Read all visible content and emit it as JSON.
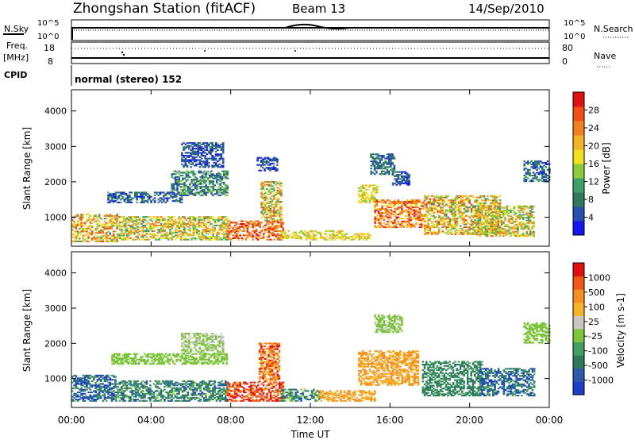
{
  "header": {
    "title": "Zhongshan Station (fitACF)",
    "beam": "Beam 13",
    "date": "14/Sep/2010"
  },
  "top_panels": {
    "nsky_label": "N.Sky",
    "nsky_ticks": [
      "10^5",
      "10^0"
    ],
    "nsearch_label": "N.Search",
    "nsearch_ticks": [
      "10^5",
      "10^0"
    ],
    "freq_label": "Freq.",
    "freq_unit": "[MHz]",
    "freq_ticks": [
      "18",
      "8"
    ],
    "nave_label": "Nave",
    "nave_ticks": [
      "80",
      "0"
    ],
    "cpid_label": "CPID",
    "cpid_text": "normal (stereo) 152"
  },
  "chart_data": [
    {
      "type": "heatmap",
      "name": "power",
      "ylabel": "Slant Range [km]",
      "xlabel": "Time UT",
      "x_range_hours": [
        0,
        24
      ],
      "ylim": [
        180,
        4600
      ],
      "yticks": [
        "1000",
        "2000",
        "3000",
        "4000"
      ],
      "xticks": [
        "00:00",
        "04:00",
        "08:00",
        "12:00",
        "16:00",
        "20:00",
        "00:00"
      ],
      "colorbar": {
        "label": "Power [dB]",
        "ticks": [
          "4",
          "8",
          "12",
          "16",
          "20",
          "24",
          "28"
        ],
        "colors": [
          "#1414f0",
          "#2a4eb0",
          "#2f7a5e",
          "#40a06a",
          "#8ccc3a",
          "#f0e020",
          "#f5b428",
          "#f08020",
          "#f05018",
          "#e01010"
        ]
      },
      "regions": [
        {
          "t": [
            0.0,
            2.3
          ],
          "r": [
            300,
            1100
          ],
          "level": [
            0.35,
            0.9
          ]
        },
        {
          "t": [
            1.8,
            5.5
          ],
          "r": [
            1400,
            1700
          ],
          "level": [
            0.05,
            0.35
          ]
        },
        {
          "t": [
            2.3,
            7.8
          ],
          "r": [
            350,
            1000
          ],
          "level": [
            0.3,
            0.8
          ]
        },
        {
          "t": [
            5.0,
            7.8
          ],
          "r": [
            1600,
            2300
          ],
          "level": [
            0.1,
            0.45
          ]
        },
        {
          "t": [
            5.5,
            7.6
          ],
          "r": [
            2400,
            3100
          ],
          "level": [
            0.05,
            0.3
          ]
        },
        {
          "t": [
            7.8,
            10.6
          ],
          "r": [
            350,
            900
          ],
          "level": [
            0.6,
            1.0
          ]
        },
        {
          "t": [
            9.5,
            10.5
          ],
          "r": [
            900,
            2000
          ],
          "level": [
            0.3,
            0.85
          ]
        },
        {
          "t": [
            9.3,
            10.3
          ],
          "r": [
            2300,
            2700
          ],
          "level": [
            0.05,
            0.25
          ]
        },
        {
          "t": [
            10.5,
            13.6
          ],
          "r": [
            350,
            600
          ],
          "level": [
            0.4,
            0.7
          ]
        },
        {
          "t": [
            13.6,
            15.0
          ],
          "r": [
            350,
            550
          ],
          "level": [
            0.4,
            0.7
          ]
        },
        {
          "t": [
            14.4,
            15.3
          ],
          "r": [
            1400,
            1900
          ],
          "level": [
            0.4,
            0.7
          ]
        },
        {
          "t": [
            15.0,
            16.2
          ],
          "r": [
            2200,
            2800
          ],
          "level": [
            0.1,
            0.35
          ]
        },
        {
          "t": [
            15.2,
            17.7
          ],
          "r": [
            700,
            1500
          ],
          "level": [
            0.55,
            0.95
          ]
        },
        {
          "t": [
            16.1,
            17.0
          ],
          "r": [
            1900,
            2300
          ],
          "level": [
            0.05,
            0.3
          ]
        },
        {
          "t": [
            17.7,
            21.5
          ],
          "r": [
            500,
            1600
          ],
          "level": [
            0.35,
            0.9
          ]
        },
        {
          "t": [
            20.3,
            23.2
          ],
          "r": [
            450,
            1300
          ],
          "level": [
            0.3,
            0.8
          ]
        },
        {
          "t": [
            22.7,
            24.0
          ],
          "r": [
            2000,
            2600
          ],
          "level": [
            0.05,
            0.35
          ]
        }
      ]
    },
    {
      "type": "heatmap",
      "name": "velocity",
      "ylabel": "Slant Range [km]",
      "xlabel": "Time UT",
      "x_range_hours": [
        0,
        24
      ],
      "ylim": [
        180,
        4600
      ],
      "yticks": [
        "1000",
        "2000",
        "3000",
        "4000"
      ],
      "xticks": [
        "00:00",
        "04:00",
        "08:00",
        "12:00",
        "16:00",
        "20:00",
        "00:00"
      ],
      "colorbar": {
        "label": "Velocity [m s-1]",
        "ticks": [
          "1000",
          "500",
          "100",
          "25",
          "-25",
          "-100",
          "-500",
          "-1000"
        ],
        "colors": [
          "#1c3ec8",
          "#2a5aa8",
          "#2f7a5e",
          "#40a060",
          "#7cc43a",
          "#c8c8c0",
          "#f5b428",
          "#f59020",
          "#f05818",
          "#e01010"
        ]
      },
      "regions": [
        {
          "t": [
            0.0,
            2.2
          ],
          "r": [
            350,
            1100
          ],
          "level": [
            0.0,
            0.35
          ]
        },
        {
          "t": [
            2.0,
            7.8
          ],
          "r": [
            1400,
            1700
          ],
          "level": [
            0.42,
            0.5
          ]
        },
        {
          "t": [
            2.2,
            7.8
          ],
          "r": [
            350,
            950
          ],
          "level": [
            0.1,
            0.45
          ]
        },
        {
          "t": [
            5.5,
            7.6
          ],
          "r": [
            1700,
            2300
          ],
          "level": [
            0.42,
            0.55
          ]
        },
        {
          "t": [
            7.8,
            10.6
          ],
          "r": [
            350,
            900
          ],
          "level": [
            0.75,
            1.0
          ]
        },
        {
          "t": [
            9.4,
            10.4
          ],
          "r": [
            900,
            2000
          ],
          "level": [
            0.6,
            0.95
          ]
        },
        {
          "t": [
            10.5,
            12.4
          ],
          "r": [
            350,
            700
          ],
          "level": [
            0.1,
            0.45
          ]
        },
        {
          "t": [
            12.4,
            15.2
          ],
          "r": [
            350,
            650
          ],
          "level": [
            0.62,
            0.75
          ]
        },
        {
          "t": [
            14.4,
            17.4
          ],
          "r": [
            800,
            1800
          ],
          "level": [
            0.62,
            0.8
          ]
        },
        {
          "t": [
            15.2,
            16.6
          ],
          "r": [
            2300,
            2800
          ],
          "level": [
            0.42,
            0.52
          ]
        },
        {
          "t": [
            17.6,
            20.6
          ],
          "r": [
            500,
            1500
          ],
          "level": [
            0.2,
            0.35
          ]
        },
        {
          "t": [
            20.5,
            23.2
          ],
          "r": [
            500,
            1300
          ],
          "level": [
            0.0,
            0.4
          ]
        },
        {
          "t": [
            22.7,
            24.0
          ],
          "r": [
            2000,
            2600
          ],
          "level": [
            0.42,
            0.5
          ]
        }
      ]
    }
  ]
}
